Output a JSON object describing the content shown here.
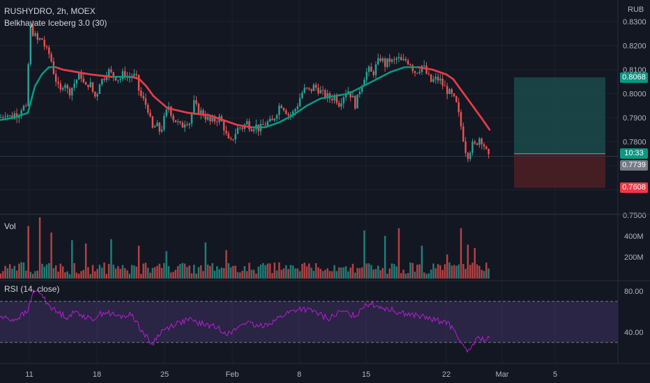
{
  "header": {
    "symbol": "RUSHYDRO, 2h, MOEX",
    "indicator": "Belkhayate Iceberg 3.0 (30)",
    "currency": "RUB",
    "volume_label": "Vol",
    "rsi_label": "RSI (14, close)"
  },
  "tags": {
    "target": "0.8068",
    "countdown": "10:33",
    "last_price": "0.7739",
    "stop": "0.7608"
  },
  "colors": {
    "background": "#131722",
    "up": "#26a69a",
    "down": "#ef5350",
    "ma_up": "#089981",
    "ma_down": "#f23645",
    "rsi_line": "#b71fd1",
    "rsi_band": "#7e57c2",
    "target_zone": "#1a4a4a",
    "stop_zone": "#4a1f24"
  },
  "chart_data": [
    {
      "type": "candlestick",
      "title": "RUSHYDRO, 2h, MOEX",
      "y_axis_ticks": [
        "0.8300",
        "0.8200",
        "0.8100",
        "0.8000",
        "0.7900",
        "0.7800",
        "0.7500"
      ],
      "ylim": [
        0.748,
        0.836
      ],
      "x_ticks": [
        "11",
        "18",
        "25",
        "Feb",
        "8",
        "15",
        "22",
        "Mar",
        "5"
      ],
      "close_path": [
        [
          0,
          0.79
        ],
        [
          8,
          0.792
        ],
        [
          16,
          0.79
        ],
        [
          22,
          0.792
        ],
        [
          26,
          0.791
        ],
        [
          32,
          0.795
        ],
        [
          38,
          0.793
        ],
        [
          41,
          0.815
        ],
        [
          44,
          0.828
        ],
        [
          48,
          0.825
        ],
        [
          54,
          0.822
        ],
        [
          60,
          0.823
        ],
        [
          66,
          0.818
        ],
        [
          72,
          0.816
        ],
        [
          76,
          0.81
        ],
        [
          80,
          0.806
        ],
        [
          86,
          0.8
        ],
        [
          92,
          0.806
        ],
        [
          98,
          0.8
        ],
        [
          104,
          0.803
        ],
        [
          110,
          0.806
        ],
        [
          116,
          0.808
        ],
        [
          122,
          0.802
        ],
        [
          128,
          0.805
        ],
        [
          134,
          0.8
        ],
        [
          138,
          0.798
        ],
        [
          142,
          0.805
        ],
        [
          148,
          0.806
        ],
        [
          154,
          0.81
        ],
        [
          160,
          0.808
        ],
        [
          166,
          0.807
        ],
        [
          172,
          0.806
        ],
        [
          178,
          0.809
        ],
        [
          184,
          0.806
        ],
        [
          190,
          0.808
        ],
        [
          196,
          0.806
        ],
        [
          200,
          0.8
        ],
        [
          206,
          0.797
        ],
        [
          212,
          0.794
        ],
        [
          218,
          0.785
        ],
        [
          224,
          0.787
        ],
        [
          230,
          0.784
        ],
        [
          236,
          0.79
        ],
        [
          242,
          0.795
        ],
        [
          248,
          0.79
        ],
        [
          254,
          0.788
        ],
        [
          260,
          0.786
        ],
        [
          266,
          0.789
        ],
        [
          272,
          0.788
        ],
        [
          278,
          0.796
        ],
        [
          284,
          0.793
        ],
        [
          290,
          0.792
        ],
        [
          296,
          0.79
        ],
        [
          302,
          0.788
        ],
        [
          308,
          0.789
        ],
        [
          314,
          0.79
        ],
        [
          320,
          0.787
        ],
        [
          326,
          0.781
        ],
        [
          330,
          0.779
        ],
        [
          336,
          0.783
        ],
        [
          342,
          0.786
        ],
        [
          348,
          0.786
        ],
        [
          354,
          0.788
        ],
        [
          360,
          0.786
        ],
        [
          366,
          0.787
        ],
        [
          372,
          0.785
        ],
        [
          378,
          0.787
        ],
        [
          384,
          0.788
        ],
        [
          390,
          0.788
        ],
        [
          396,
          0.792
        ],
        [
          402,
          0.796
        ],
        [
          408,
          0.794
        ],
        [
          414,
          0.791
        ],
        [
          420,
          0.792
        ],
        [
          426,
          0.795
        ],
        [
          432,
          0.8
        ],
        [
          438,
          0.802
        ],
        [
          444,
          0.801
        ],
        [
          450,
          0.803
        ],
        [
          456,
          0.802
        ],
        [
          462,
          0.8
        ],
        [
          468,
          0.799
        ],
        [
          474,
          0.798
        ],
        [
          480,
          0.799
        ],
        [
          486,
          0.796
        ],
        [
          492,
          0.799
        ],
        [
          498,
          0.802
        ],
        [
          504,
          0.799
        ],
        [
          510,
          0.795
        ],
        [
          516,
          0.802
        ],
        [
          522,
          0.807
        ],
        [
          528,
          0.81
        ],
        [
          534,
          0.808
        ],
        [
          540,
          0.812
        ],
        [
          546,
          0.815
        ],
        [
          552,
          0.812
        ],
        [
          558,
          0.814
        ],
        [
          564,
          0.813
        ],
        [
          570,
          0.815
        ],
        [
          576,
          0.813
        ],
        [
          582,
          0.814
        ],
        [
          588,
          0.813
        ],
        [
          594,
          0.809
        ],
        [
          600,
          0.81
        ],
        [
          606,
          0.812
        ],
        [
          612,
          0.808
        ],
        [
          618,
          0.805
        ],
        [
          624,
          0.806
        ],
        [
          630,
          0.806
        ],
        [
          636,
          0.803
        ],
        [
          642,
          0.801
        ],
        [
          648,
          0.799
        ],
        [
          654,
          0.796
        ],
        [
          660,
          0.788
        ],
        [
          664,
          0.782
        ],
        [
          668,
          0.776
        ],
        [
          672,
          0.774
        ],
        [
          676,
          0.779
        ],
        [
          680,
          0.778
        ],
        [
          684,
          0.78
        ],
        [
          688,
          0.782
        ],
        [
          692,
          0.78
        ],
        [
          696,
          0.777
        ],
        [
          700,
          0.773
        ],
        [
          703,
          0.7739
        ]
      ],
      "iceberg_ma": {
        "name": "Belkhayate Iceberg 3.0 (30)",
        "path": [
          [
            0,
            0.789
          ],
          [
            20,
            0.79
          ],
          [
            40,
            0.792
          ],
          [
            50,
            0.803
          ],
          [
            60,
            0.808
          ],
          [
            70,
            0.811
          ],
          [
            80,
            0.811
          ],
          [
            90,
            0.81
          ],
          [
            110,
            0.809
          ],
          [
            130,
            0.808
          ],
          [
            160,
            0.807
          ],
          [
            190,
            0.807
          ],
          [
            200,
            0.806
          ],
          [
            210,
            0.803
          ],
          [
            220,
            0.799
          ],
          [
            240,
            0.794
          ],
          [
            270,
            0.792
          ],
          [
            300,
            0.791
          ],
          [
            320,
            0.789
          ],
          [
            340,
            0.787
          ],
          [
            360,
            0.786
          ],
          [
            380,
            0.786
          ],
          [
            400,
            0.788
          ],
          [
            420,
            0.791
          ],
          [
            440,
            0.795
          ],
          [
            460,
            0.798
          ],
          [
            480,
            0.799
          ],
          [
            500,
            0.8
          ],
          [
            520,
            0.803
          ],
          [
            540,
            0.806
          ],
          [
            560,
            0.809
          ],
          [
            580,
            0.811
          ],
          [
            600,
            0.811
          ],
          [
            620,
            0.81
          ],
          [
            640,
            0.808
          ],
          [
            650,
            0.806
          ],
          [
            660,
            0.802
          ],
          [
            670,
            0.798
          ],
          [
            680,
            0.794
          ],
          [
            690,
            0.79
          ],
          [
            702,
            0.785
          ]
        ]
      },
      "trade_setup": {
        "entry": 0.775,
        "target": 0.8068,
        "stop": 0.7608
      },
      "last_price": 0.7739
    },
    {
      "type": "bar",
      "title": "Vol",
      "y_axis_ticks": [
        "400M",
        "200M"
      ],
      "ylim": [
        0,
        560
      ],
      "note": "volume bars in millions",
      "spikes": [
        [
          42,
          480
        ],
        [
          58,
          560
        ],
        [
          75,
          420
        ],
        [
          104,
          350
        ],
        [
          124,
          320
        ],
        [
          160,
          360
        ],
        [
          200,
          300
        ],
        [
          240,
          250
        ],
        [
          296,
          330
        ],
        [
          326,
          260
        ],
        [
          524,
          440
        ],
        [
          552,
          390
        ],
        [
          572,
          460
        ],
        [
          604,
          300
        ],
        [
          640,
          220
        ],
        [
          660,
          460
        ],
        [
          670,
          310
        ],
        [
          680,
          280
        ]
      ]
    },
    {
      "type": "line",
      "title": "RSI (14, close)",
      "y_axis_ticks": [
        "80.00",
        "40.00"
      ],
      "ylim": [
        10,
        90
      ],
      "band": [
        30,
        70
      ],
      "values_path": [
        [
          0,
          55
        ],
        [
          20,
          52
        ],
        [
          40,
          60
        ],
        [
          46,
          78
        ],
        [
          56,
          80
        ],
        [
          66,
          70
        ],
        [
          80,
          60
        ],
        [
          96,
          55
        ],
        [
          110,
          60
        ],
        [
          130,
          52
        ],
        [
          150,
          60
        ],
        [
          170,
          55
        ],
        [
          190,
          57
        ],
        [
          200,
          45
        ],
        [
          210,
          35
        ],
        [
          218,
          28
        ],
        [
          230,
          40
        ],
        [
          250,
          48
        ],
        [
          270,
          52
        ],
        [
          290,
          48
        ],
        [
          310,
          45
        ],
        [
          330,
          38
        ],
        [
          350,
          50
        ],
        [
          370,
          45
        ],
        [
          390,
          50
        ],
        [
          410,
          58
        ],
        [
          430,
          63
        ],
        [
          450,
          60
        ],
        [
          470,
          53
        ],
        [
          490,
          60
        ],
        [
          510,
          56
        ],
        [
          524,
          68
        ],
        [
          540,
          66
        ],
        [
          560,
          62
        ],
        [
          580,
          58
        ],
        [
          600,
          56
        ],
        [
          620,
          52
        ],
        [
          640,
          50
        ],
        [
          656,
          38
        ],
        [
          664,
          25
        ],
        [
          670,
          20
        ],
        [
          680,
          30
        ],
        [
          688,
          35
        ],
        [
          696,
          32
        ],
        [
          702,
          34
        ]
      ]
    }
  ]
}
